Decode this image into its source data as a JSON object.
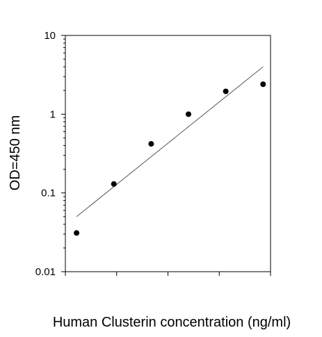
{
  "chart_data": {
    "type": "scatter",
    "title": "",
    "xlabel": "Human Clusterin concentration (ng/ml)",
    "ylabel": "OD=450 nm",
    "y_scale": "log",
    "ylim": [
      0.01,
      10
    ],
    "yticks": [
      {
        "value": 0.01,
        "label": "0.01"
      },
      {
        "value": 0.1,
        "label": "0.1"
      },
      {
        "value": 1,
        "label": "1"
      },
      {
        "value": 10,
        "label": "10"
      }
    ],
    "x_tick_labels_shown": false,
    "x_tick_count": 6,
    "grid": false,
    "points": [
      {
        "x": 1,
        "y": 0.031
      },
      {
        "x": 2,
        "y": 0.13
      },
      {
        "x": 3,
        "y": 0.42
      },
      {
        "x": 4,
        "y": 1.0
      },
      {
        "x": 5,
        "y": 1.95
      },
      {
        "x": 6,
        "y": 2.4
      }
    ],
    "fit_line": {
      "start": {
        "x": 1,
        "y": 0.05
      },
      "end": {
        "x": 6,
        "y": 4.0
      }
    }
  },
  "colors": {
    "axis": "#000000",
    "points": "#000000",
    "fit_line": "#555555",
    "background": "#ffffff"
  }
}
